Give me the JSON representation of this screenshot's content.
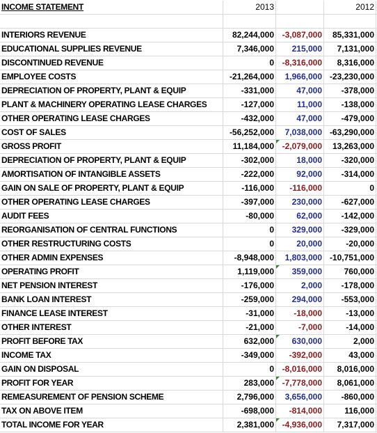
{
  "header": {
    "title": "INCOME STATEMENT",
    "col_2013": "2013",
    "col_diff": "",
    "col_2012": "2012"
  },
  "colors": {
    "positive": "#1f2e8f",
    "negative": "#8b1a1a",
    "marker": "#2e8b2e",
    "grid": "#d8d8d8"
  },
  "rows": [
    {
      "label": "INTERIORS REVENUE",
      "v2013": "82,244,000",
      "diff": "-3,087,000",
      "v2012": "85,331,000",
      "sign": "neg",
      "strong": false,
      "marker": false
    },
    {
      "label": "EDUCATIONAL SUPPLIES REVENUE",
      "v2013": "7,346,000",
      "diff": "215,000",
      "v2012": "7,131,000",
      "sign": "pos",
      "strong": false,
      "marker": false
    },
    {
      "label": "DISCONTINUED REVENUE",
      "v2013": "0",
      "diff": "-8,316,000",
      "v2012": "8,316,000",
      "sign": "neg",
      "strong": false,
      "marker": false
    },
    {
      "label": "EMPLOYEE COSTS",
      "v2013": "-21,264,000",
      "diff": "1,966,000",
      "v2012": "-23,230,000",
      "sign": "pos",
      "strong": false,
      "marker": false
    },
    {
      "label": "DEPRECIATION OF PROPERTY, PLANT & EQUIP",
      "v2013": "-331,000",
      "diff": "47,000",
      "v2012": "-378,000",
      "sign": "pos",
      "strong": false,
      "marker": false
    },
    {
      "label": "PLANT & MACHINERY OPERATING LEASE CHARGES",
      "v2013": "-127,000",
      "diff": "11,000",
      "v2012": "-138,000",
      "sign": "pos",
      "strong": false,
      "marker": false
    },
    {
      "label": "OTHER OPERATING LEASE CHARGES",
      "v2013": "-432,000",
      "diff": "47,000",
      "v2012": "-479,000",
      "sign": "pos",
      "strong": false,
      "marker": false
    },
    {
      "label": "COST OF SALES",
      "v2013": "-56,252,000",
      "diff": "7,038,000",
      "v2012": "-63,290,000",
      "sign": "pos",
      "strong": false,
      "marker": false
    },
    {
      "label": "GROSS PROFIT",
      "v2013": "11,184,000",
      "diff": "-2,079,000",
      "v2012": "13,263,000",
      "sign": "neg",
      "strong": true,
      "marker": true
    },
    {
      "label": "DEPRECIATION OF PROPERTY, PLANT & EQUIP",
      "v2013": "-302,000",
      "diff": "18,000",
      "v2012": "-320,000",
      "sign": "pos",
      "strong": false,
      "marker": false
    },
    {
      "label": "AMORTISATION OF INTANGIBLE ASSETS",
      "v2013": "-222,000",
      "diff": "92,000",
      "v2012": "-314,000",
      "sign": "pos",
      "strong": false,
      "marker": false
    },
    {
      "label": "GAIN ON SALE OF PROPERTY, PLANT & EQUIP",
      "v2013": "-116,000",
      "diff": "-116,000",
      "v2012": "0",
      "sign": "neg",
      "strong": false,
      "marker": false
    },
    {
      "label": "OTHER OPERATING LEASE CHARGES",
      "v2013": "-397,000",
      "diff": "230,000",
      "v2012": "-627,000",
      "sign": "pos",
      "strong": false,
      "marker": false
    },
    {
      "label": "AUDIT FEES",
      "v2013": "-80,000",
      "diff": "62,000",
      "v2012": "-142,000",
      "sign": "pos",
      "strong": false,
      "marker": false
    },
    {
      "label": "REORGANISATION OF CENTRAL FUNCTIONS",
      "v2013": "0",
      "diff": "329,000",
      "v2012": "-329,000",
      "sign": "pos",
      "strong": false,
      "marker": false
    },
    {
      "label": "OTHER RESTRUCTURING COSTS",
      "v2013": "0",
      "diff": "20,000",
      "v2012": "-20,000",
      "sign": "pos",
      "strong": false,
      "marker": false
    },
    {
      "label": "OTHER ADMIN EXPENSES",
      "v2013": "-8,948,000",
      "diff": "1,803,000",
      "v2012": "-10,751,000",
      "sign": "pos",
      "strong": false,
      "marker": false
    },
    {
      "label": "OPERATING PROFIT",
      "v2013": "1,119,000",
      "diff": "359,000",
      "v2012": "760,000",
      "sign": "pos",
      "strong": true,
      "marker": true
    },
    {
      "label": "NET PENSION INTEREST",
      "v2013": "-176,000",
      "diff": "2,000",
      "v2012": "-178,000",
      "sign": "pos",
      "strong": false,
      "marker": false
    },
    {
      "label": "BANK LOAN INTEREST",
      "v2013": "-259,000",
      "diff": "294,000",
      "v2012": "-553,000",
      "sign": "pos",
      "strong": false,
      "marker": false
    },
    {
      "label": "FINANCE LEASE INTEREST",
      "v2013": "-31,000",
      "diff": "-18,000",
      "v2012": "-13,000",
      "sign": "neg",
      "strong": false,
      "marker": false
    },
    {
      "label": "OTHER INTEREST",
      "v2013": "-21,000",
      "diff": "-7,000",
      "v2012": "-14,000",
      "sign": "neg",
      "strong": false,
      "marker": false
    },
    {
      "label": "PROFIT BEFORE TAX",
      "v2013": "632,000",
      "diff": "630,000",
      "v2012": "2,000",
      "sign": "pos",
      "strong": true,
      "marker": true
    },
    {
      "label": "INCOME TAX",
      "v2013": "-349,000",
      "diff": "-392,000",
      "v2012": "43,000",
      "sign": "neg",
      "strong": false,
      "marker": false
    },
    {
      "label": "GAIN ON DISPOSAL",
      "v2013": "0",
      "diff": "-8,016,000",
      "v2012": "8,016,000",
      "sign": "neg",
      "strong": false,
      "marker": false
    },
    {
      "label": "PROFIT FOR YEAR",
      "v2013": "283,000",
      "diff": "-7,778,000",
      "v2012": "8,061,000",
      "sign": "neg",
      "strong": true,
      "marker": true
    },
    {
      "label": "REMEASUREMENT OF PENSION SCHEME",
      "v2013": "2,796,000",
      "diff": "3,656,000",
      "v2012": "-860,000",
      "sign": "pos",
      "strong": false,
      "marker": false
    },
    {
      "label": "TAX ON ABOVE ITEM",
      "v2013": "-698,000",
      "diff": "-814,000",
      "v2012": "116,000",
      "sign": "neg",
      "strong": false,
      "marker": false
    },
    {
      "label": "TOTAL INCOME FOR YEAR",
      "v2013": "2,381,000",
      "diff": "-4,936,000",
      "v2012": "7,317,000",
      "sign": "neg",
      "strong": true,
      "marker": true
    }
  ]
}
